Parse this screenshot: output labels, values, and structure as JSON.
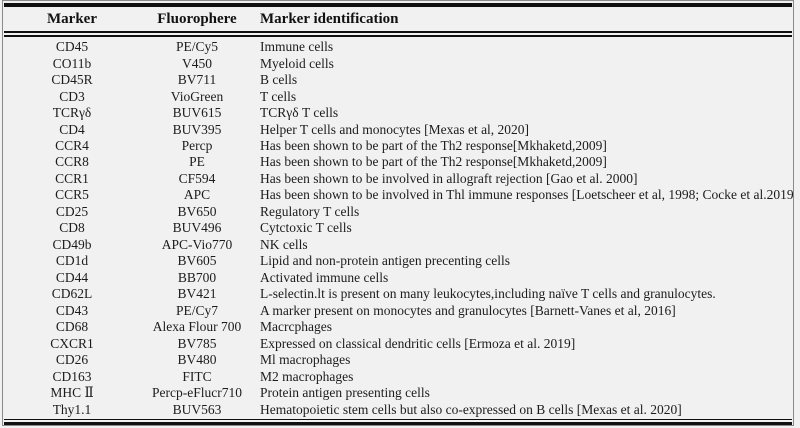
{
  "table": {
    "columns": [
      "Marker",
      "Fluorophere",
      "Marker identification"
    ],
    "rows": [
      {
        "marker": "CD45",
        "fluorophore": "PE/Cy5",
        "identification": "Immune cells"
      },
      {
        "marker": "CO11b",
        "fluorophore": "V450",
        "identification": "Myeloid cells"
      },
      {
        "marker": "CD45R",
        "fluorophore": "BV711",
        "identification": "B cells"
      },
      {
        "marker": "CD3",
        "fluorophore": "VioGreen",
        "identification": "T cells"
      },
      {
        "marker": "TCRγδ",
        "fluorophore": "BUV615",
        "identification": "TCRγδ T cells"
      },
      {
        "marker": "CD4",
        "fluorophore": "BUV395",
        "identification": "Helper T cells and monocytes [Mexas et al, 2020]"
      },
      {
        "marker": "CCR4",
        "fluorophore": "Percp",
        "identification": "Has been shown to be part of the Th2 response[Mkhaketd,2009]"
      },
      {
        "marker": "CCR8",
        "fluorophore": "PE",
        "identification": "Has been shown to be part of the Th2 response[Mkhaketd,2009]"
      },
      {
        "marker": "CCR1",
        "fluorophore": "CF594",
        "identification": "Has been shown to be involved in allograft rejection [Gao et al. 2000]"
      },
      {
        "marker": "CCR5",
        "fluorophore": "APC",
        "identification": "Has been shown to be involved in Thl immune responses [Loetscheer et al, 1998; Cocke et al.2019]"
      },
      {
        "marker": "CD25",
        "fluorophore": "BV650",
        "identification": "Regulatory T cells"
      },
      {
        "marker": "CD8",
        "fluorophore": "BUV496",
        "identification": "Cytctoxic T cells"
      },
      {
        "marker": "CD49b",
        "fluorophore": "APC-Vio770",
        "identification": "NK cells"
      },
      {
        "marker": "CD1d",
        "fluorophore": "BV605",
        "identification": "Lipid and non-protein antigen precenting cells"
      },
      {
        "marker": "CD44",
        "fluorophore": "BB700",
        "identification": "Activated immune cells"
      },
      {
        "marker": "CD62L",
        "fluorophore": "BV421",
        "identification": "L-selectin.lt is present on many leukocytes,including naïve T cells and granulocytes."
      },
      {
        "marker": "CD43",
        "fluorophore": "PE/Cy7",
        "identification": "A marker present on monocytes and granulocytes [Barnett-Vanes et al, 2016]"
      },
      {
        "marker": "CD68",
        "fluorophore": "Alexa Flour 700",
        "identification": "Macrcphages"
      },
      {
        "marker": "CXCR1",
        "fluorophore": "BV785",
        "identification": "Expressed on classical dendritic cells [Ermoza et al. 2019]"
      },
      {
        "marker": "CD26",
        "fluorophore": "BV480",
        "identification": "Ml macrophages"
      },
      {
        "marker": "CD163",
        "fluorophore": "FITC",
        "identification": "M2 macrophages"
      },
      {
        "marker": "MHC Ⅱ",
        "fluorophore": "Percp-eFlucr710",
        "identification": "Protein antigen presenting cells"
      },
      {
        "marker": "Thy1.1",
        "fluorophore": "BUV563",
        "identification": "Hematopoietic stem cells but also co-expressed on B cells [Mexas et al. 2020]"
      }
    ]
  },
  "colors": {
    "background": "#f1f1f1",
    "rule": "#101010",
    "text": "#1c1c1c",
    "frame_border": "#8a8a8a"
  }
}
